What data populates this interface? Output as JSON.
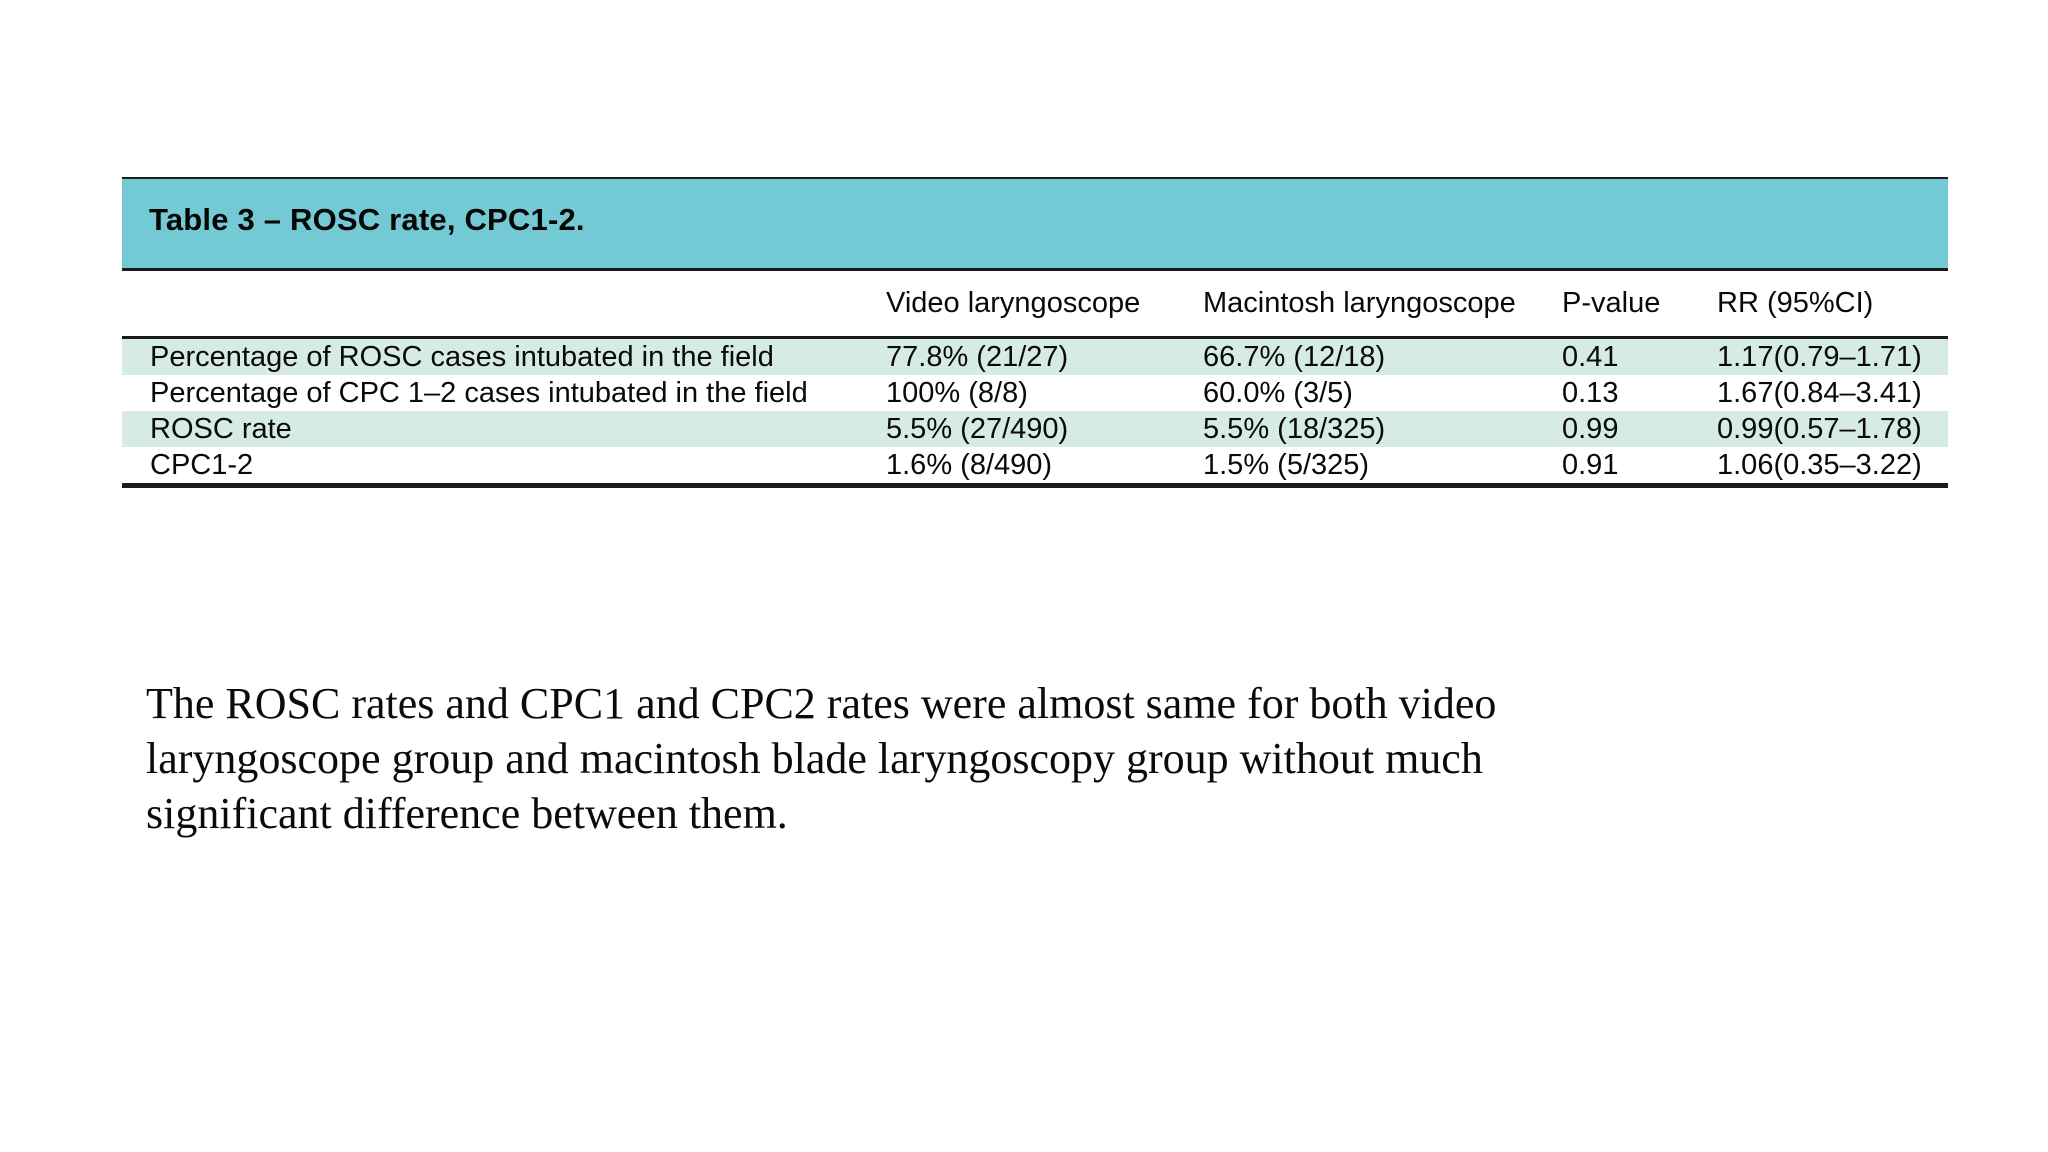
{
  "table": {
    "caption": "Table 3 – ROSC rate, CPC1-2.",
    "colors": {
      "caption_bg": "#74CAD4",
      "row_shade_bg": "#D6EBE6",
      "rule": "#1b1b1b",
      "text": "#000000"
    },
    "columns": [
      "",
      "Video laryngoscope",
      "Macintosh laryngoscope",
      "P-value",
      "RR (95%CI)"
    ],
    "rows": [
      {
        "shaded": true,
        "cells": [
          "Percentage of ROSC cases intubated in the field",
          "77.8% (21/27)",
          "66.7% (12/18)",
          "0.41",
          "1.17(0.79–1.71)"
        ]
      },
      {
        "shaded": false,
        "cells": [
          "Percentage of CPC 1–2 cases intubated in the field",
          "100% (8/8)",
          "60.0% (3/5)",
          "0.13",
          "1.67(0.84–3.41)"
        ]
      },
      {
        "shaded": true,
        "cells": [
          "ROSC rate",
          "5.5% (27/490)",
          "5.5% (18/325)",
          "0.99",
          "0.99(0.57–1.78)"
        ]
      },
      {
        "shaded": false,
        "cells": [
          "CPC1-2",
          "1.6% (8/490)",
          "1.5% (5/325)",
          "0.91",
          "1.06(0.35–3.22)"
        ]
      }
    ]
  },
  "note": {
    "lines": [
      "The ROSC rates and CPC1 and CPC2 rates were almost same for both video",
      "laryngoscope group and macintosh blade laryngoscopy group without much",
      "significant difference between them."
    ],
    "full_text": "The ROSC rates and CPC1 and CPC2 rates were almost same for both video laryngoscope group and macintosh blade laryngoscopy group without much significant difference between them."
  }
}
